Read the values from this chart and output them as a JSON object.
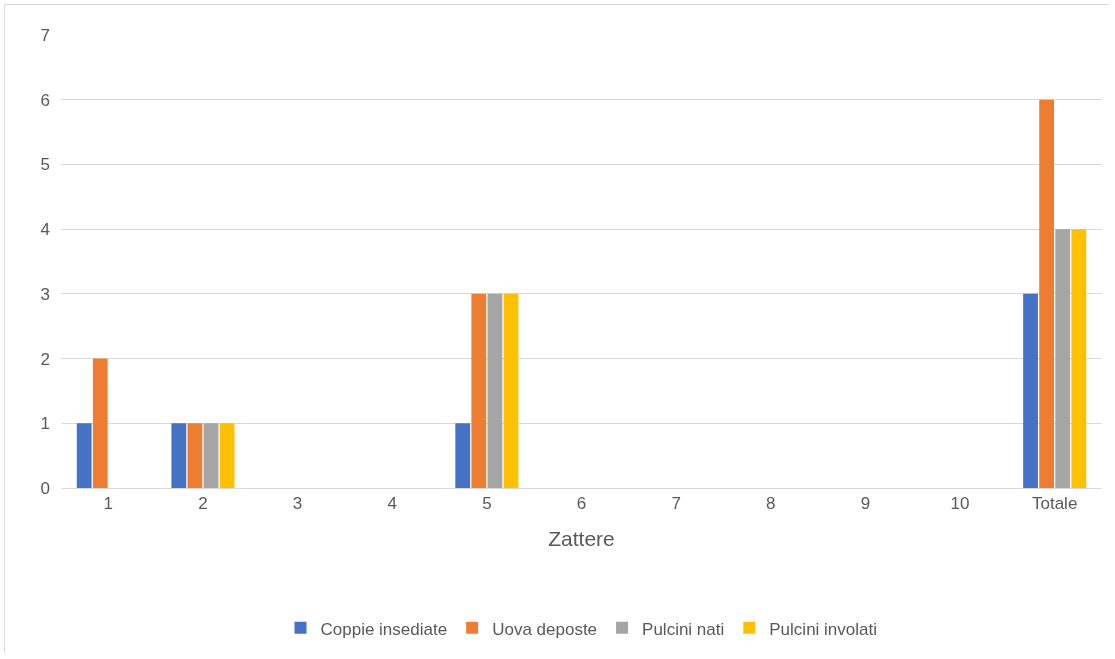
{
  "chart_data": {
    "type": "bar",
    "xlabel": "Zattere",
    "categories": [
      "1",
      "2",
      "3",
      "4",
      "5",
      "6",
      "7",
      "8",
      "9",
      "10",
      "Totale"
    ],
    "series": [
      {
        "name": "Coppie insediate",
        "color": "#4472c4",
        "values": [
          1,
          1,
          0,
          0,
          1,
          0,
          0,
          0,
          0,
          0,
          3
        ]
      },
      {
        "name": "Uova deposte",
        "color": "#ed7d31",
        "values": [
          2,
          1,
          0,
          0,
          3,
          0,
          0,
          0,
          0,
          0,
          6
        ]
      },
      {
        "name": "Pulcini nati",
        "color": "#a5a5a5",
        "values": [
          0,
          1,
          0,
          0,
          3,
          0,
          0,
          0,
          0,
          0,
          4
        ]
      },
      {
        "name": "Pulcini involati",
        "color": "#ffc000",
        "values": [
          0,
          1,
          0,
          0,
          3,
          0,
          0,
          0,
          0,
          0,
          4
        ]
      }
    ],
    "ylim": [
      0,
      7
    ],
    "yticks": [
      0,
      1,
      2,
      3,
      4,
      5,
      6,
      7
    ],
    "grid": "y",
    "legend": "bottom"
  }
}
